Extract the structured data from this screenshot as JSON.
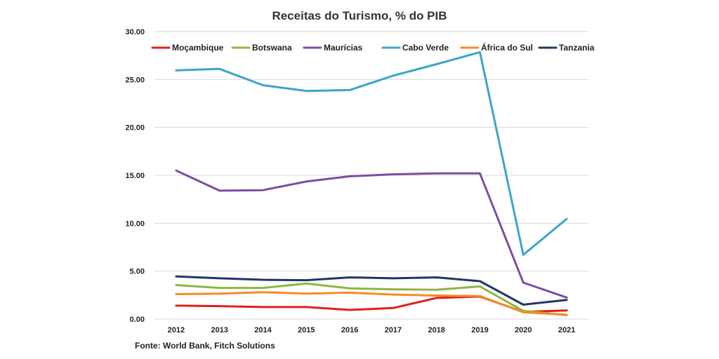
{
  "chart_data": {
    "type": "line",
    "title": "Receitas do Turismo, % do PIB",
    "source": "Fonte: World Bank, Fitch Solutions",
    "xlabel": "",
    "ylabel": "",
    "categories": [
      "2012",
      "2013",
      "2014",
      "2015",
      "2016",
      "2017",
      "2018",
      "2019",
      "2020",
      "2021"
    ],
    "ylim": [
      0,
      30
    ],
    "yticks": [
      "0.00",
      "5.00",
      "10.00",
      "15.00",
      "20.00",
      "25.00",
      "30.00"
    ],
    "grid": true,
    "legend": "top",
    "series": [
      {
        "name": "Moçambique",
        "color": "#e0201b",
        "values": [
          1.4,
          1.35,
          1.25,
          1.25,
          0.95,
          1.15,
          2.2,
          2.35,
          0.75,
          0.9
        ]
      },
      {
        "name": "Botswana",
        "color": "#8db640",
        "values": [
          3.55,
          3.25,
          3.25,
          3.7,
          3.2,
          3.1,
          3.05,
          3.4,
          0.85,
          0.4
        ]
      },
      {
        "name": "Maurícias",
        "color": "#7b4fa0",
        "values": [
          15.5,
          13.4,
          13.45,
          14.35,
          14.9,
          15.1,
          15.2,
          15.2,
          3.8,
          2.25
        ]
      },
      {
        "name": "Cabo Verde",
        "color": "#3aa6c6",
        "values": [
          25.95,
          26.1,
          24.4,
          23.8,
          23.9,
          25.4,
          26.6,
          27.85,
          6.7,
          10.45
        ]
      },
      {
        "name": "África do Sul",
        "color": "#f28c28",
        "values": [
          2.6,
          2.65,
          2.8,
          2.65,
          2.75,
          2.55,
          2.45,
          2.4,
          0.7,
          0.45
        ]
      },
      {
        "name": "Tanzania",
        "color": "#1f3864",
        "values": [
          4.45,
          4.25,
          4.1,
          4.05,
          4.35,
          4.25,
          4.35,
          3.95,
          1.5,
          2.0
        ]
      }
    ]
  }
}
